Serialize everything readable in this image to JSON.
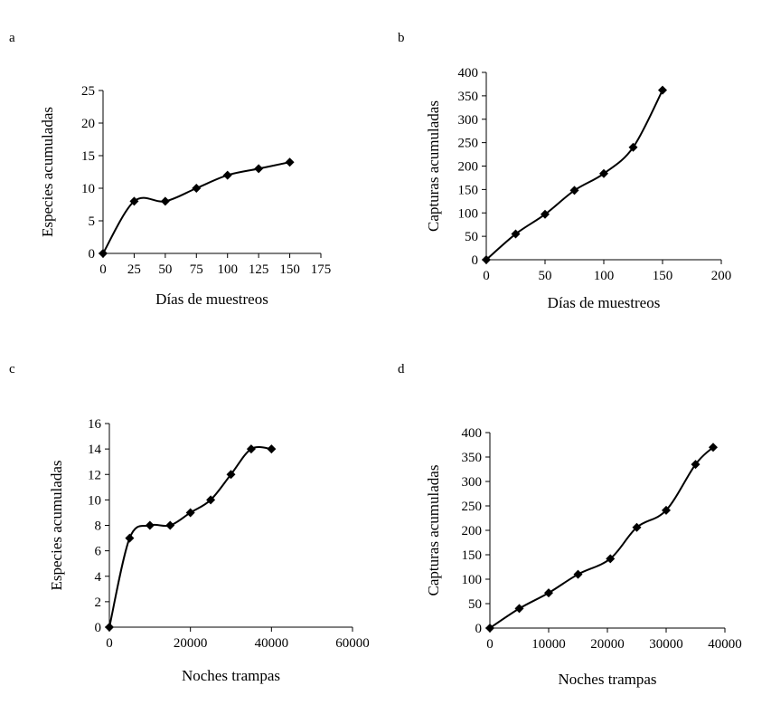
{
  "chart_data": [
    {
      "panel_label": "a",
      "type": "line",
      "title": "",
      "xlabel": "Días de muestreos",
      "ylabel": "Especies acumuladas",
      "xlim": [
        0,
        175
      ],
      "ylim": [
        0,
        25
      ],
      "xticks": [
        0,
        25,
        50,
        75,
        100,
        125,
        150,
        175
      ],
      "yticks": [
        0,
        5,
        10,
        15,
        20,
        25
      ],
      "grid": false,
      "legend": "none",
      "smooth": true,
      "marker": "diamond",
      "color": "#000000",
      "series": [
        {
          "x": [
            0,
            25,
            50,
            75,
            100,
            125,
            150
          ],
          "y": [
            0,
            8,
            8,
            10,
            12,
            13,
            14
          ]
        }
      ]
    },
    {
      "panel_label": "b",
      "type": "line",
      "title": "",
      "xlabel": "Días de muestreos",
      "ylabel": "Capturas acumuladas",
      "xlim": [
        0,
        200
      ],
      "ylim": [
        0,
        400
      ],
      "xticks": [
        0,
        50,
        100,
        150,
        200
      ],
      "yticks": [
        0,
        50,
        100,
        150,
        200,
        250,
        300,
        350,
        400
      ],
      "grid": false,
      "legend": "none",
      "smooth": true,
      "marker": "diamond",
      "color": "#000000",
      "series": [
        {
          "x": [
            0,
            25,
            50,
            75,
            100,
            125,
            150
          ],
          "y": [
            0,
            55,
            97,
            148,
            184,
            240,
            362
          ]
        }
      ]
    },
    {
      "panel_label": "c",
      "type": "line",
      "title": "",
      "xlabel": "Noches trampas",
      "ylabel": "Especies acumuladas",
      "xlim": [
        0,
        60000
      ],
      "ylim": [
        0,
        16
      ],
      "xticks": [
        0,
        20000,
        40000,
        60000
      ],
      "yticks": [
        0,
        2,
        4,
        6,
        8,
        10,
        12,
        14,
        16
      ],
      "grid": false,
      "legend": "none",
      "smooth": true,
      "marker": "diamond",
      "color": "#000000",
      "series": [
        {
          "x": [
            0,
            5000,
            10000,
            15000,
            20000,
            25000,
            30000,
            35000,
            40000
          ],
          "y": [
            0,
            7,
            8,
            8,
            9,
            10,
            12,
            14,
            14
          ]
        }
      ]
    },
    {
      "panel_label": "d",
      "type": "line",
      "title": "",
      "xlabel": "Noches trampas",
      "ylabel": "Capturas acumuladas",
      "xlim": [
        0,
        40000
      ],
      "ylim": [
        0,
        400
      ],
      "xticks": [
        0,
        10000,
        20000,
        30000,
        40000
      ],
      "yticks": [
        0,
        50,
        100,
        150,
        200,
        250,
        300,
        350,
        400
      ],
      "grid": false,
      "legend": "none",
      "smooth": true,
      "marker": "diamond",
      "color": "#000000",
      "series": [
        {
          "x": [
            0,
            5000,
            10000,
            15000,
            20500,
            25000,
            30000,
            35000,
            38000
          ],
          "y": [
            0,
            40,
            72,
            110,
            142,
            206,
            241,
            335,
            370
          ]
        }
      ]
    }
  ]
}
